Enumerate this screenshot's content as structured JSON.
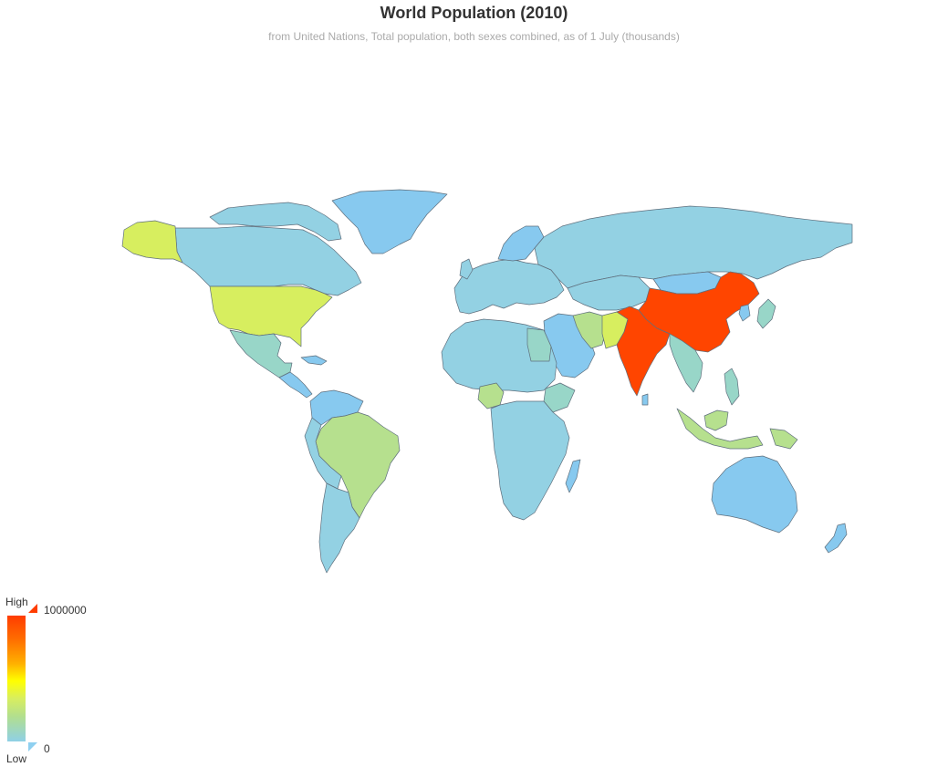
{
  "title": "World Population (2010)",
  "subtitle": "from United Nations, Total population, both sexes combined, as of 1 July (thousands)",
  "legend": {
    "high_label": "High",
    "low_label": "Low",
    "max_value": "1000000",
    "min_value": "0",
    "color_high": "#ff3c00",
    "color_mid": "#ffff00",
    "color_low": "#8fd0f0"
  },
  "colors": {
    "very_low": "#87c9ef",
    "low": "#93d1e3",
    "low_mid": "#98d6c8",
    "mid": "#b6e08e",
    "upper_mid": "#d7ee5f",
    "highest": "#ff4500"
  },
  "map_data": {
    "type": "choropleth",
    "metric": "Total population (thousands)",
    "range": [
      0,
      1000000
    ]
  }
}
